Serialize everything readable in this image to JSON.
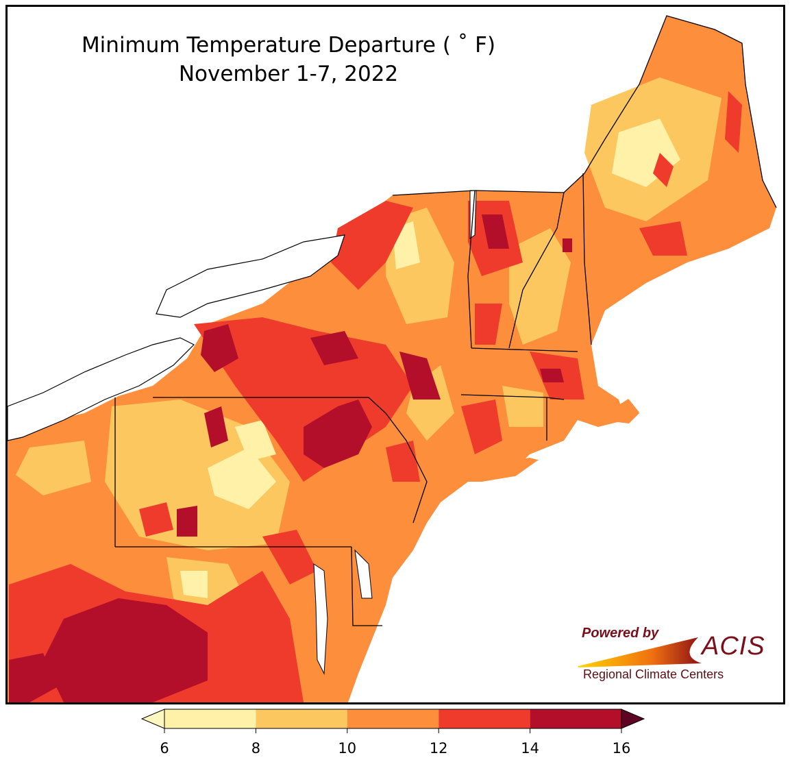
{
  "title": {
    "line1": "Minimum Temperature Departure ( ˚ F)",
    "line2": "November 1-7, 2022"
  },
  "logo": {
    "powered_by": "Powered by",
    "name": "ACIS",
    "subtitle": "Regional Climate Centers"
  },
  "legend": {
    "ticks": [
      "6",
      "8",
      "10",
      "12",
      "14",
      "16"
    ],
    "colors": [
      "#fff2a8",
      "#fdc75f",
      "#fc8e3c",
      "#ef3b2c",
      "#b30f2a"
    ],
    "under_color": "#fff7c0",
    "over_color": "#5e0524",
    "extend": "both"
  },
  "map": {
    "region": "Northeast United States",
    "ocean_color": "#ffffff",
    "border_color": "#000000",
    "county_line_color": "#a0a0a0"
  }
}
